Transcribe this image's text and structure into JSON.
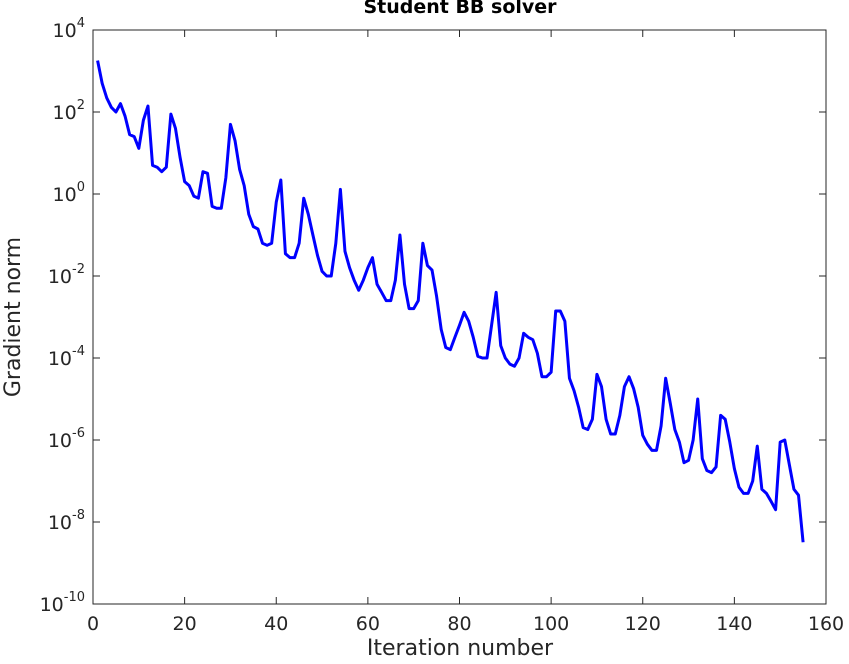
{
  "chart_data": {
    "type": "line",
    "title": "Student BB solver",
    "xlabel": "Iteration number",
    "ylabel": "Gradient norm",
    "color": "#0000ff",
    "log_y": true,
    "xlim": [
      0,
      160
    ],
    "xticks": [
      0,
      20,
      40,
      60,
      80,
      100,
      120,
      140,
      160
    ],
    "ylim": [
      1e-10,
      10000
    ],
    "yticks": [
      {
        "value": 1e-10,
        "label": "10",
        "exponent": "-10"
      },
      {
        "value": 1e-08,
        "label": "10",
        "exponent": "-8"
      },
      {
        "value": 1e-06,
        "label": "10",
        "exponent": "-6"
      },
      {
        "value": 0.0001,
        "label": "10",
        "exponent": "-4"
      },
      {
        "value": 0.01,
        "label": "10",
        "exponent": "-2"
      },
      {
        "value": 1,
        "label": "10",
        "exponent": "0"
      },
      {
        "value": 100,
        "label": "10",
        "exponent": "2"
      },
      {
        "value": 10000,
        "label": "10",
        "exponent": "4"
      }
    ],
    "x": [
      1,
      2,
      3,
      4,
      5,
      6,
      7,
      8,
      9,
      10,
      11,
      12,
      13,
      14,
      15,
      16,
      17,
      18,
      19,
      20,
      21,
      22,
      23,
      24,
      25,
      26,
      27,
      28,
      29,
      30,
      31,
      32,
      33,
      34,
      35,
      36,
      37,
      38,
      39,
      40,
      41,
      42,
      43,
      44,
      45,
      46,
      47,
      48,
      49,
      50,
      51,
      52,
      53,
      54,
      55,
      56,
      57,
      58,
      59,
      60,
      61,
      62,
      63,
      64,
      65,
      66,
      67,
      68,
      69,
      70,
      71,
      72,
      73,
      74,
      75,
      76,
      77,
      78,
      79,
      80,
      81,
      82,
      83,
      84,
      85,
      86,
      87,
      88,
      89,
      90,
      91,
      92,
      93,
      94,
      95,
      96,
      97,
      98,
      99,
      100,
      101,
      102,
      103,
      104,
      105,
      106,
      107,
      108,
      109,
      110,
      111,
      112,
      113,
      114,
      115,
      116,
      117,
      118,
      119,
      120,
      121,
      122,
      123,
      124,
      125,
      126,
      127,
      128,
      129,
      130,
      131,
      132,
      133,
      134,
      135,
      136,
      137,
      138,
      139,
      140,
      141,
      142,
      143,
      144,
      145,
      146,
      147,
      148,
      149,
      150,
      151,
      152,
      153,
      154,
      155
    ],
    "values": [
      1800,
      500,
      220,
      130,
      100,
      160,
      79,
      28,
      25,
      13,
      63,
      140,
      5.0,
      4.5,
      3.5,
      4.5,
      89,
      40,
      7.9,
      2.0,
      1.6,
      0.89,
      0.79,
      3.5,
      3.2,
      0.5,
      0.45,
      0.45,
      2.5,
      50,
      20,
      4.0,
      1.6,
      0.32,
      0.16,
      0.14,
      0.063,
      0.056,
      0.063,
      0.63,
      2.2,
      0.035,
      0.028,
      0.028,
      0.063,
      0.79,
      0.32,
      0.1,
      0.032,
      0.013,
      0.01,
      0.01,
      0.063,
      1.3,
      0.04,
      0.016,
      0.0079,
      0.0045,
      0.0079,
      0.016,
      0.028,
      0.0063,
      0.004,
      0.0025,
      0.0025,
      0.0079,
      0.1,
      0.0063,
      0.0016,
      0.0016,
      0.0025,
      0.063,
      0.018,
      0.014,
      0.0032,
      0.0005,
      0.00018,
      0.00016,
      0.00032,
      0.00063,
      0.0013,
      0.00079,
      0.00032,
      0.00011,
      0.0001,
      0.0001,
      0.00063,
      0.004,
      0.0002,
      0.0001,
      7.1e-05,
      6.3e-05,
      0.0001,
      0.0004,
      0.00032,
      0.00028,
      0.00013,
      3.5e-05,
      3.5e-05,
      4.5e-05,
      0.0014,
      0.0014,
      0.00079,
      3.2e-05,
      1.6e-05,
      6.3e-06,
      2e-06,
      1.8e-06,
      3.2e-06,
      4e-05,
      2e-05,
      3.2e-06,
      1.4e-06,
      1.4e-06,
      4e-06,
      2e-05,
      3.5e-05,
      1.8e-05,
      6.3e-06,
      1.3e-06,
      7.9e-07,
      5.6e-07,
      5.6e-07,
      2.2e-06,
      3.2e-05,
      7.9e-06,
      1.8e-06,
      8.9e-07,
      2.8e-07,
      3.2e-07,
      1e-06,
      1e-05,
      3.5e-07,
      1.8e-07,
      1.6e-07,
      2.2e-07,
      4e-06,
      3.2e-06,
      8.9e-07,
      2e-07,
      7.1e-08,
      5e-08,
      5e-08,
      1e-07,
      7.1e-07,
      6.3e-08,
      5e-08,
      3.2e-08,
      2e-08,
      8.9e-07,
      1e-06,
      2.5e-07,
      6.3e-08,
      4.5e-08,
      3.2e-09
    ]
  }
}
